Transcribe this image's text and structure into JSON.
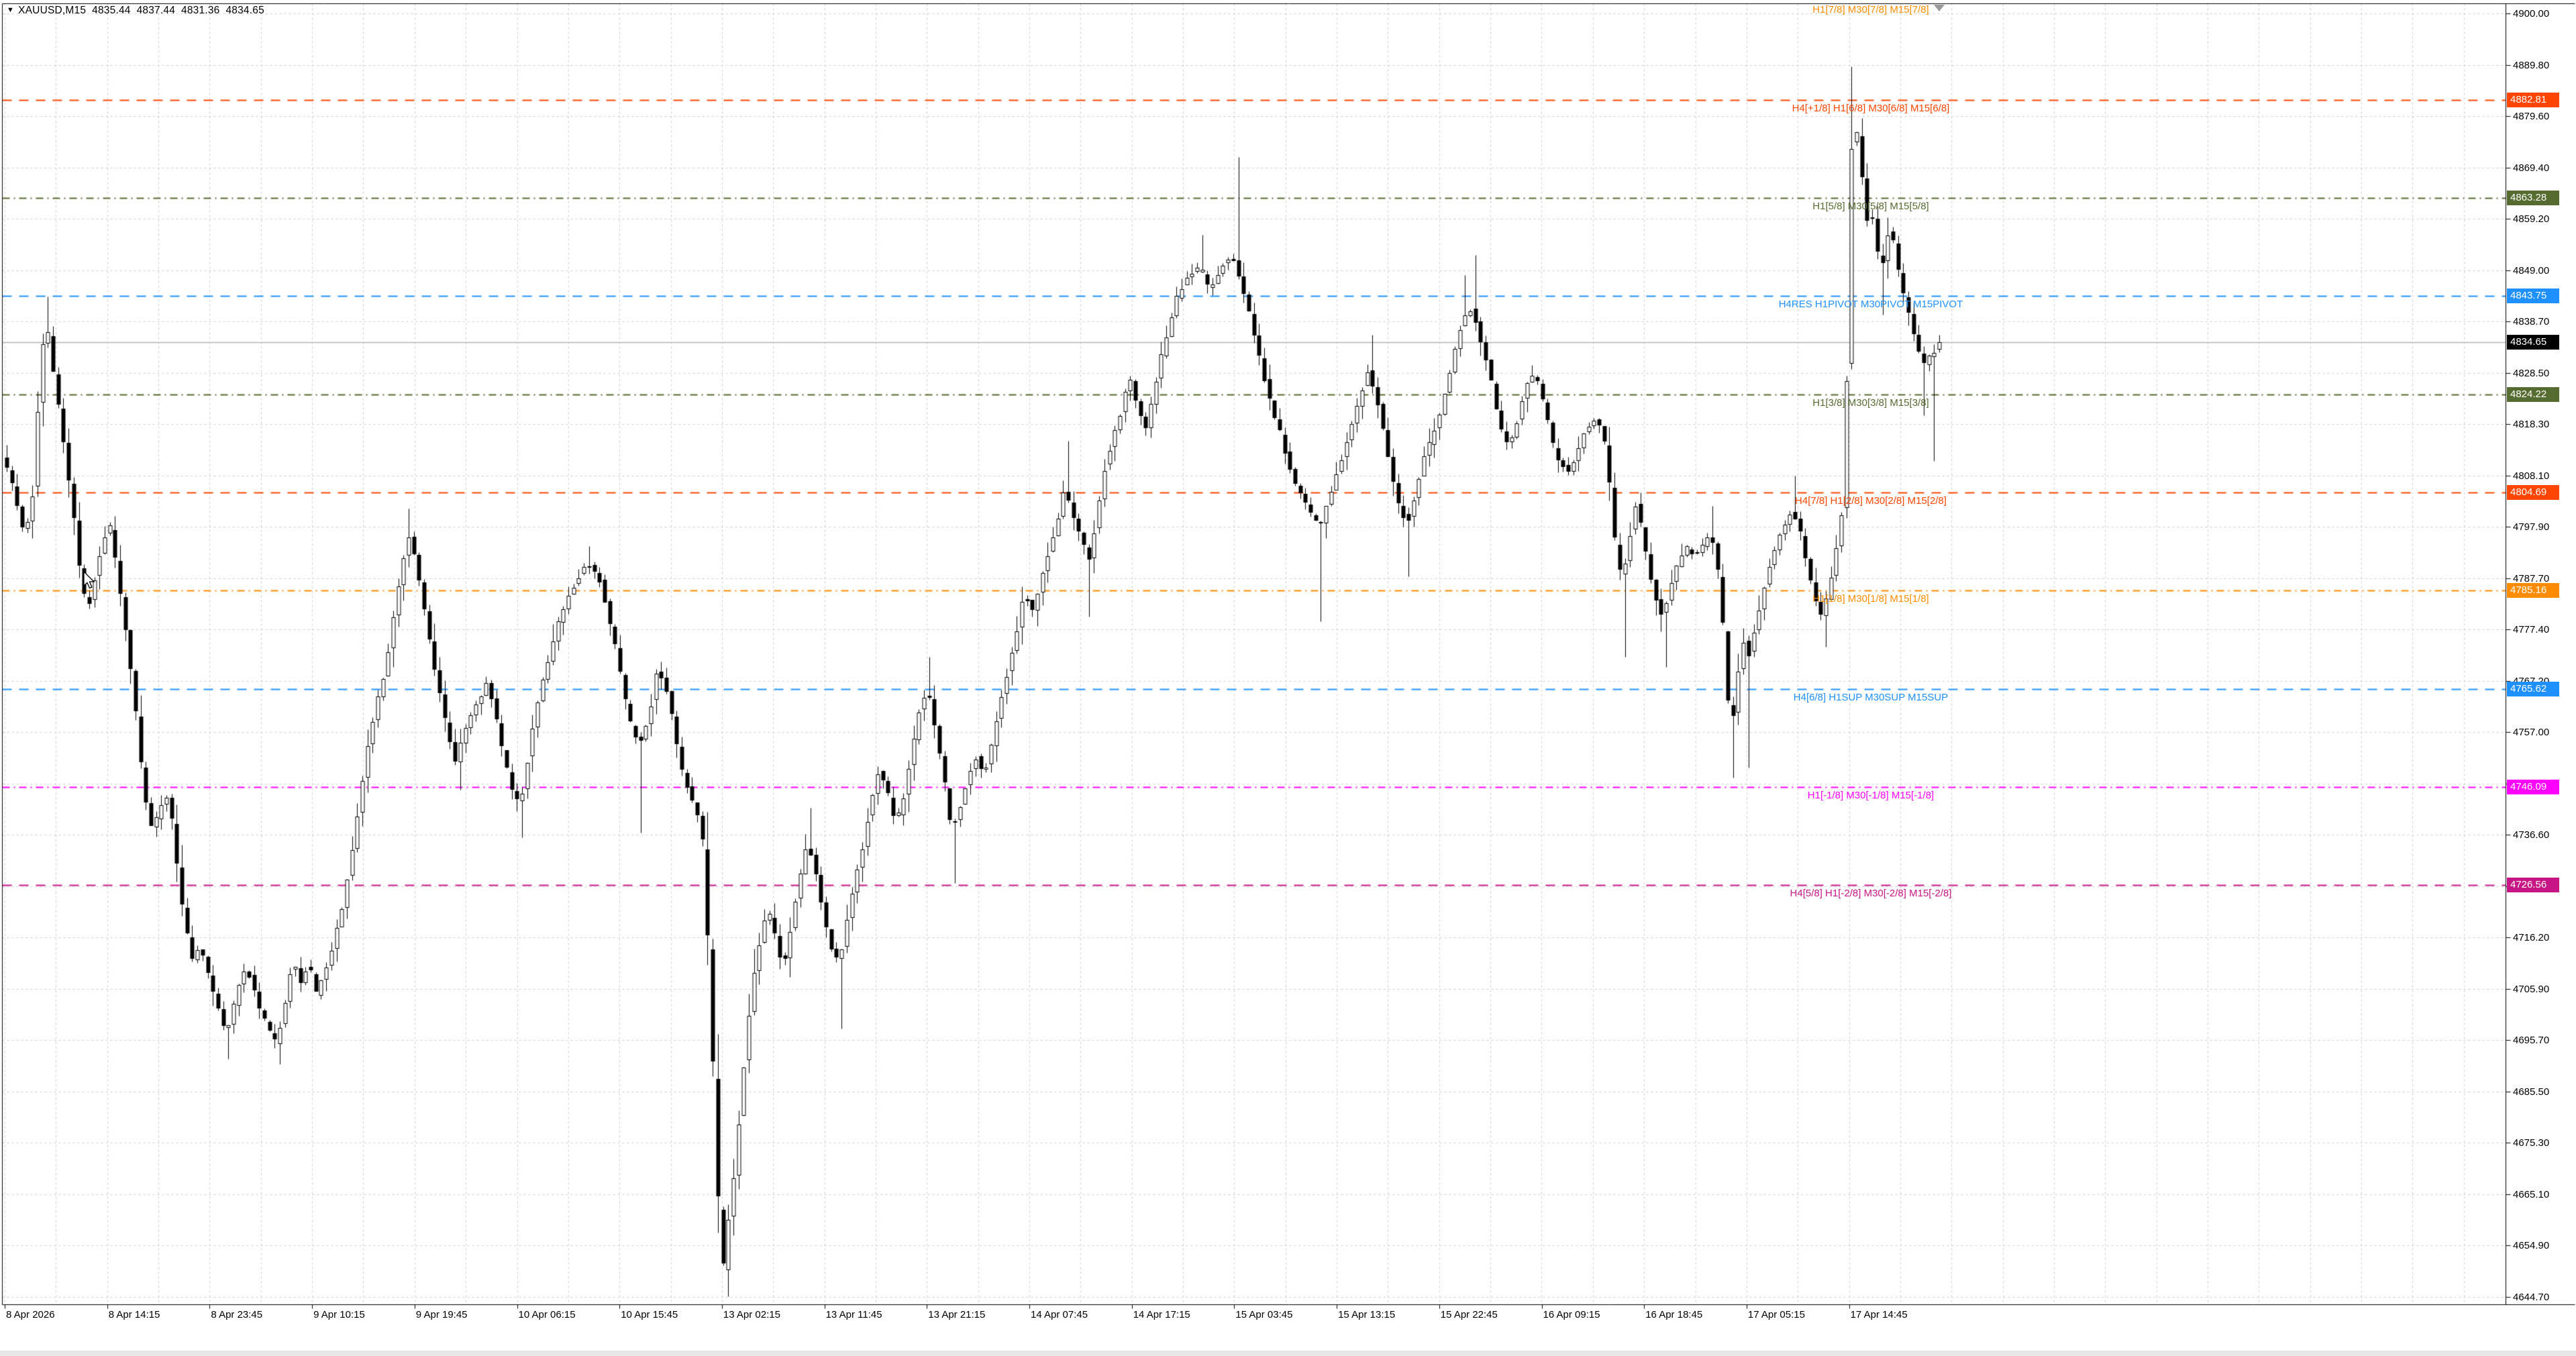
{
  "header": {
    "collapse_icon": "▼",
    "symbol": "XAUUSD,M15",
    "open": "4835.44",
    "high": "4837.44",
    "low": "4831.36",
    "close": "4834.65"
  },
  "chart_data": {
    "type": "candlestick",
    "symbol": "XAUUSD",
    "timeframe": "M15",
    "background": "#ffffff",
    "grid_color": "#cbcbcb",
    "candle_up_fill": "#ffffff",
    "candle_down_fill": "#000000",
    "candle_border": "#000000",
    "ylim": [
      4644.7,
      4900.0
    ],
    "price_ticks": [
      "4900.00",
      "4889.80",
      "4879.60",
      "4869.40",
      "4859.20",
      "4849.00",
      "4838.70",
      "4828.50",
      "4818.30",
      "4808.10",
      "4797.90",
      "4787.70",
      "4777.40",
      "4767.20",
      "4757.00",
      "4746.80",
      "4736.60",
      "4726.40",
      "4716.20",
      "4705.90",
      "4695.70",
      "4685.50",
      "4675.30",
      "4665.10",
      "4654.90",
      "4644.70"
    ],
    "time_labels": [
      "8 Apr 2026",
      "8 Apr 14:15",
      "8 Apr 23:45",
      "9 Apr 10:15",
      "9 Apr 19:45",
      "10 Apr 06:15",
      "10 Apr 15:45",
      "13 Apr 02:15",
      "13 Apr 11:45",
      "13 Apr 21:15",
      "14 Apr 07:45",
      "14 Apr 17:15",
      "15 Apr 03:45",
      "15 Apr 13:15",
      "15 Apr 22:45",
      "16 Apr 09:15",
      "16 Apr 18:45",
      "17 Apr 05:15",
      "17 Apr 14:45"
    ],
    "bid": {
      "price": 4834.65,
      "label": "4834.65",
      "line_color": "#b4b4b4",
      "box_color": "#000000"
    },
    "levels": [
      {
        "label": "H1[7/8] M30[7/8] M15[7/8]",
        "price": 4902.34,
        "color": "#FF8C00",
        "style": "dashdot",
        "box": null,
        "line_visible": false
      },
      {
        "label": "H4[+1/8] H1[6/8] M30[6/8] M15[6/8]",
        "price": 4882.81,
        "color": "#FF4500",
        "style": "dash",
        "box": "4882.81",
        "line_visible": true
      },
      {
        "label": "H1[5/8] M30[5/8] M15[5/8]",
        "price": 4863.28,
        "color": "#556B2F",
        "style": "dashdot",
        "box": "4863.28",
        "line_visible": true
      },
      {
        "label": "H4RES H1PIVOT M30PIVOT M15PIVOT",
        "price": 4843.75,
        "color": "#1E90FF",
        "style": "dash",
        "box": "4843.75",
        "line_visible": true
      },
      {
        "label": "H1[3/8] M30[3/8] M15[3/8]",
        "price": 4824.22,
        "color": "#556B2F",
        "style": "dashdot",
        "box": "4824.22",
        "line_visible": true
      },
      {
        "label": "H4[7/8] H1[2/8] M30[2/8] M15[2/8]",
        "price": 4804.69,
        "color": "#FF4500",
        "style": "dash",
        "box": "4804.69",
        "line_visible": true
      },
      {
        "label": "H1[1/8] M30[1/8] M15[1/8]",
        "price": 4785.16,
        "color": "#FF8C00",
        "style": "dashdot",
        "box": "4785.16",
        "line_visible": true
      },
      {
        "label": "H4[6/8] H1SUP M30SUP M15SUP",
        "price": 4765.62,
        "color": "#1E90FF",
        "style": "dash",
        "box": "4765.62",
        "line_visible": true
      },
      {
        "label": "H1[-1/8] M30[-1/8] M15[-1/8]",
        "price": 4746.09,
        "color": "#FF00FF",
        "style": "dashdot",
        "box": "4746.09",
        "line_visible": true
      },
      {
        "label": "H4[5/8] H1[-2/8] M30[-2/8] M15[-2/8]",
        "price": 4726.56,
        "color": "#C71585",
        "style": "dash",
        "box": "4726.56",
        "line_visible": true
      }
    ],
    "path_anchors": [
      [
        8,
        4812
      ],
      [
        22,
        4806
      ],
      [
        38,
        4797
      ],
      [
        50,
        4800
      ],
      [
        58,
        4818
      ],
      [
        66,
        4834
      ],
      [
        74,
        4837
      ],
      [
        84,
        4828
      ],
      [
        95,
        4818
      ],
      [
        105,
        4808
      ],
      [
        115,
        4798
      ],
      [
        124,
        4787
      ],
      [
        134,
        4781
      ],
      [
        145,
        4788
      ],
      [
        157,
        4795
      ],
      [
        166,
        4799
      ],
      [
        178,
        4789
      ],
      [
        192,
        4776
      ],
      [
        205,
        4762
      ],
      [
        218,
        4745
      ],
      [
        230,
        4738
      ],
      [
        243,
        4742
      ],
      [
        255,
        4745
      ],
      [
        265,
        4733
      ],
      [
        277,
        4720
      ],
      [
        290,
        4712
      ],
      [
        302,
        4714
      ],
      [
        315,
        4708
      ],
      [
        327,
        4703
      ],
      [
        340,
        4697
      ],
      [
        352,
        4703
      ],
      [
        365,
        4710
      ],
      [
        378,
        4708
      ],
      [
        390,
        4702
      ],
      [
        403,
        4698
      ],
      [
        415,
        4695
      ],
      [
        428,
        4703
      ],
      [
        440,
        4712
      ],
      [
        452,
        4707
      ],
      [
        463,
        4711
      ],
      [
        475,
        4705
      ],
      [
        487,
        4709
      ],
      [
        500,
        4715
      ],
      [
        513,
        4722
      ],
      [
        526,
        4732
      ],
      [
        539,
        4743
      ],
      [
        552,
        4755
      ],
      [
        565,
        4763
      ],
      [
        578,
        4770
      ],
      [
        590,
        4780
      ],
      [
        602,
        4790
      ],
      [
        612,
        4796
      ],
      [
        622,
        4792
      ],
      [
        634,
        4783
      ],
      [
        646,
        4773
      ],
      [
        658,
        4765
      ],
      [
        670,
        4757
      ],
      [
        682,
        4751
      ],
      [
        694,
        4757
      ],
      [
        706,
        4761
      ],
      [
        718,
        4764
      ],
      [
        730,
        4767
      ],
      [
        742,
        4760
      ],
      [
        754,
        4752
      ],
      [
        766,
        4746
      ],
      [
        778,
        4742
      ],
      [
        790,
        4752
      ],
      [
        802,
        4762
      ],
      [
        814,
        4768
      ],
      [
        826,
        4774
      ],
      [
        838,
        4780
      ],
      [
        850,
        4784
      ],
      [
        862,
        4787
      ],
      [
        874,
        4790
      ],
      [
        886,
        4790
      ],
      [
        898,
        4787
      ],
      [
        910,
        4780
      ],
      [
        922,
        4773
      ],
      [
        934,
        4764
      ],
      [
        946,
        4757
      ],
      [
        958,
        4755
      ],
      [
        970,
        4760
      ],
      [
        982,
        4769
      ],
      [
        994,
        4767
      ],
      [
        1006,
        4759
      ],
      [
        1018,
        4750
      ],
      [
        1030,
        4745
      ],
      [
        1040,
        4742
      ],
      [
        1050,
        4736
      ],
      [
        1058,
        4716
      ],
      [
        1066,
        4690
      ],
      [
        1074,
        4662
      ],
      [
        1082,
        4650
      ],
      [
        1090,
        4662
      ],
      [
        1098,
        4670
      ],
      [
        1107,
        4684
      ],
      [
        1116,
        4697
      ],
      [
        1126,
        4708
      ],
      [
        1136,
        4716
      ],
      [
        1147,
        4722
      ],
      [
        1158,
        4717
      ],
      [
        1170,
        4710
      ],
      [
        1182,
        4718
      ],
      [
        1194,
        4727
      ],
      [
        1206,
        4735
      ],
      [
        1218,
        4730
      ],
      [
        1230,
        4721
      ],
      [
        1242,
        4714
      ],
      [
        1254,
        4711
      ],
      [
        1266,
        4720
      ],
      [
        1278,
        4728
      ],
      [
        1290,
        4735
      ],
      [
        1302,
        4744
      ],
      [
        1314,
        4750
      ],
      [
        1326,
        4745
      ],
      [
        1338,
        4739
      ],
      [
        1350,
        4744
      ],
      [
        1362,
        4753
      ],
      [
        1374,
        4762
      ],
      [
        1386,
        4766
      ],
      [
        1398,
        4757
      ],
      [
        1410,
        4748
      ],
      [
        1422,
        4737
      ],
      [
        1434,
        4742
      ],
      [
        1446,
        4748
      ],
      [
        1458,
        4752
      ],
      [
        1470,
        4749
      ],
      [
        1482,
        4755
      ],
      [
        1494,
        4763
      ],
      [
        1506,
        4770
      ],
      [
        1518,
        4777
      ],
      [
        1530,
        4785
      ],
      [
        1542,
        4781
      ],
      [
        1554,
        4787
      ],
      [
        1566,
        4793
      ],
      [
        1578,
        4798
      ],
      [
        1590,
        4806
      ],
      [
        1602,
        4800
      ],
      [
        1614,
        4796
      ],
      [
        1626,
        4791
      ],
      [
        1638,
        4800
      ],
      [
        1650,
        4810
      ],
      [
        1662,
        4816
      ],
      [
        1674,
        4821
      ],
      [
        1686,
        4828
      ],
      [
        1698,
        4822
      ],
      [
        1710,
        4817
      ],
      [
        1722,
        4824
      ],
      [
        1734,
        4832
      ],
      [
        1746,
        4838
      ],
      [
        1758,
        4844
      ],
      [
        1770,
        4847
      ],
      [
        1782,
        4849
      ],
      [
        1794,
        4849
      ],
      [
        1806,
        4845
      ],
      [
        1818,
        4848
      ],
      [
        1830,
        4851
      ],
      [
        1842,
        4851
      ],
      [
        1852,
        4847
      ],
      [
        1862,
        4842
      ],
      [
        1874,
        4835
      ],
      [
        1886,
        4828
      ],
      [
        1898,
        4822
      ],
      [
        1910,
        4817
      ],
      [
        1922,
        4811
      ],
      [
        1934,
        4806
      ],
      [
        1946,
        4803
      ],
      [
        1958,
        4800
      ],
      [
        1970,
        4798
      ],
      [
        1982,
        4803
      ],
      [
        1994,
        4808
      ],
      [
        2006,
        4813
      ],
      [
        2018,
        4818
      ],
      [
        2030,
        4824
      ],
      [
        2042,
        4829
      ],
      [
        2054,
        4824
      ],
      [
        2066,
        4816
      ],
      [
        2078,
        4808
      ],
      [
        2090,
        4801
      ],
      [
        2102,
        4799
      ],
      [
        2114,
        4805
      ],
      [
        2126,
        4812
      ],
      [
        2138,
        4816
      ],
      [
        2150,
        4821
      ],
      [
        2162,
        4827
      ],
      [
        2174,
        4835
      ],
      [
        2186,
        4840
      ],
      [
        2198,
        4841
      ],
      [
        2210,
        4835
      ],
      [
        2222,
        4829
      ],
      [
        2234,
        4821
      ],
      [
        2246,
        4814
      ],
      [
        2258,
        4816
      ],
      [
        2270,
        4822
      ],
      [
        2282,
        4828
      ],
      [
        2294,
        4827
      ],
      [
        2306,
        4821
      ],
      [
        2318,
        4814
      ],
      [
        2330,
        4810
      ],
      [
        2342,
        4809
      ],
      [
        2354,
        4813
      ],
      [
        2366,
        4817
      ],
      [
        2378,
        4819
      ],
      [
        2390,
        4818
      ],
      [
        2400,
        4810
      ],
      [
        2410,
        4795
      ],
      [
        2420,
        4787
      ],
      [
        2432,
        4796
      ],
      [
        2442,
        4803
      ],
      [
        2452,
        4796
      ],
      [
        2462,
        4788
      ],
      [
        2472,
        4783
      ],
      [
        2482,
        4780
      ],
      [
        2492,
        4786
      ],
      [
        2504,
        4791
      ],
      [
        2516,
        4794
      ],
      [
        2528,
        4792
      ],
      [
        2540,
        4794
      ],
      [
        2552,
        4797
      ],
      [
        2562,
        4791
      ],
      [
        2572,
        4777
      ],
      [
        2582,
        4757
      ],
      [
        2590,
        4764
      ],
      [
        2600,
        4776
      ],
      [
        2608,
        4772
      ],
      [
        2616,
        4776
      ],
      [
        2626,
        4782
      ],
      [
        2638,
        4789
      ],
      [
        2650,
        4794
      ],
      [
        2662,
        4798
      ],
      [
        2674,
        4801
      ],
      [
        2686,
        4797
      ],
      [
        2698,
        4789
      ],
      [
        2708,
        4784
      ],
      [
        2718,
        4780
      ],
      [
        2728,
        4785
      ],
      [
        2738,
        4792
      ],
      [
        2748,
        4801
      ],
      [
        2756,
        4830
      ],
      [
        2762,
        4872
      ],
      [
        2768,
        4880
      ],
      [
        2774,
        4872
      ],
      [
        2780,
        4866
      ],
      [
        2786,
        4859
      ],
      [
        2792,
        4861
      ],
      [
        2798,
        4856
      ],
      [
        2804,
        4850
      ],
      [
        2810,
        4851
      ],
      [
        2816,
        4856
      ],
      [
        2822,
        4857
      ],
      [
        2828,
        4852
      ],
      [
        2834,
        4847
      ],
      [
        2840,
        4844
      ],
      [
        2846,
        4841
      ],
      [
        2852,
        4838
      ],
      [
        2858,
        4835
      ],
      [
        2864,
        4832
      ],
      [
        2870,
        4830
      ],
      [
        2876,
        4833
      ],
      [
        2882,
        4831
      ],
      [
        2890,
        4834.65
      ]
    ],
    "wick_extremes": [
      [
        72,
        4843.7
      ],
      [
        340,
        4692
      ],
      [
        415,
        4691
      ],
      [
        610,
        4801.5
      ],
      [
        685,
        4745.5
      ],
      [
        775,
        4736
      ],
      [
        880,
        4794
      ],
      [
        955,
        4737
      ],
      [
        1082,
        4644.8
      ],
      [
        1206,
        4742
      ],
      [
        1254,
        4698
      ],
      [
        1386,
        4772
      ],
      [
        1422,
        4727
      ],
      [
        1590,
        4815
      ],
      [
        1626,
        4780
      ],
      [
        1790,
        4856
      ],
      [
        1842,
        4871.4
      ],
      [
        1970,
        4779
      ],
      [
        2042,
        4836
      ],
      [
        2102,
        4788
      ],
      [
        2186,
        4848
      ],
      [
        2198,
        4852
      ],
      [
        2420,
        4772
      ],
      [
        2472,
        4777
      ],
      [
        2482,
        4770
      ],
      [
        2552,
        4802
      ],
      [
        2582,
        4748
      ],
      [
        2608,
        4750
      ],
      [
        2674,
        4808
      ],
      [
        2718,
        4774
      ],
      [
        2762,
        4889.5
      ],
      [
        2804,
        4840
      ],
      [
        2868,
        4820
      ],
      [
        2884,
        4811
      ]
    ]
  }
}
